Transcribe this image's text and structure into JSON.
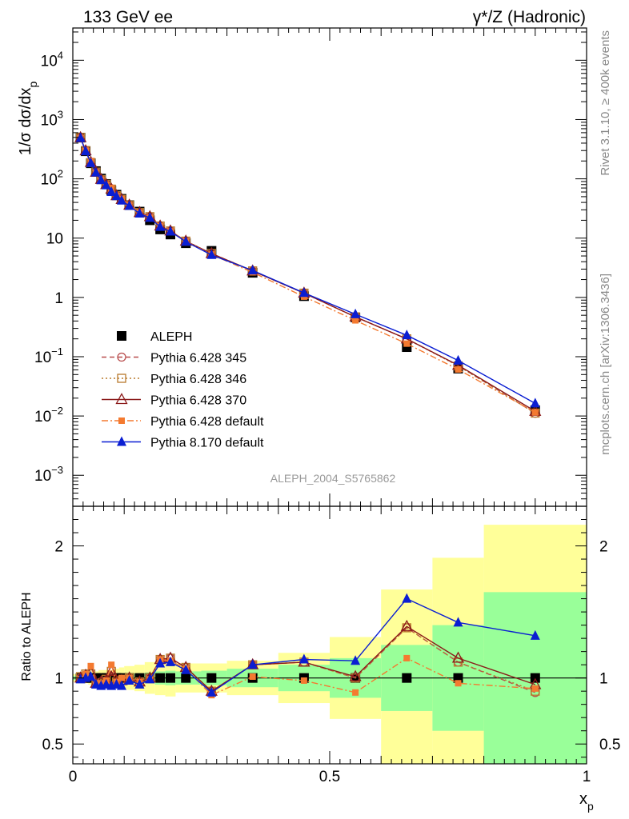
{
  "header": {
    "left": "133 GeV ee",
    "right": "γ*/Z (Hadronic)"
  },
  "side_text": {
    "rivet": "Rivet 3.1.10, ≥ 400k events",
    "mcplots": "mcplots.cern.ch [arXiv:1306.3436]"
  },
  "analysis_label": "ALEPH_2004_S5765862",
  "colors": {
    "aleph": "#000000",
    "p345": "#b84c4c",
    "p346": "#b87a2c",
    "p370": "#8b1a1a",
    "p6def": "#f47a30",
    "p8def": "#0a1ed2",
    "band_outer": "#ffff99",
    "band_inner": "#99ff99"
  },
  "chart_data": [
    {
      "type": "scatter",
      "panel": "main",
      "ylabel": "1/σ dσ/dx_p",
      "yscale": "log",
      "ylim": [
        0.0003,
        35000
      ],
      "xlim": [
        0,
        1
      ],
      "y_tick_labels": [
        "10^-3",
        "10^-2",
        "10^-1",
        "1",
        "10",
        "10^2",
        "10^3",
        "10^4"
      ],
      "legend_position": "center-left",
      "x": [
        0.015,
        0.025,
        0.035,
        0.045,
        0.055,
        0.065,
        0.075,
        0.085,
        0.095,
        0.11,
        0.13,
        0.15,
        0.17,
        0.19,
        0.22,
        0.27,
        0.35,
        0.45,
        0.55,
        0.65,
        0.75,
        0.9
      ],
      "series": [
        {
          "name": "ALEPH",
          "key": "aleph",
          "marker": "square",
          "line": "none",
          "values": [
            495,
            292,
            183,
            135,
            101,
            82,
            64,
            54,
            46,
            36,
            28,
            20,
            14,
            11.5,
            8.2,
            6.1,
            2.6,
            1.05,
            0.46,
            0.145,
            0.063,
            0.0125
          ]
        },
        {
          "name": "Pythia 6.428 345",
          "key": "p345",
          "marker": "circle-open",
          "line": "dashed",
          "values": [
            495,
            298,
            190,
            129,
            98,
            80,
            68,
            52,
            45,
            36,
            27,
            23,
            16,
            13.2,
            8.9,
            5.5,
            2.8,
            1.18,
            0.47,
            0.2,
            0.071,
            0.0111
          ]
        },
        {
          "name": "Pythia 6.428 346",
          "key": "p346",
          "marker": "square-open",
          "line": "dotted",
          "values": [
            500,
            300,
            188,
            130,
            97,
            81,
            67,
            52,
            45,
            36,
            27,
            23,
            16,
            13.2,
            8.9,
            5.5,
            2.8,
            1.18,
            0.47,
            0.2,
            0.07,
            0.0112
          ]
        },
        {
          "name": "Pythia 6.428 370",
          "key": "p370",
          "marker": "triangle-open",
          "line": "solid",
          "values": [
            495,
            298,
            190,
            129,
            98,
            80,
            67,
            52,
            45,
            36,
            27,
            23,
            16,
            13.2,
            8.9,
            5.5,
            2.8,
            1.18,
            0.47,
            0.2,
            0.072,
            0.012
          ]
        },
        {
          "name": "Pythia 6.428 default",
          "key": "p6def",
          "marker": "square-filled-small",
          "line": "dashdot",
          "values": [
            490,
            300,
            200,
            129,
            97,
            80,
            70,
            52,
            46,
            36,
            27,
            22,
            16,
            13,
            8.8,
            5.3,
            2.65,
            1.03,
            0.41,
            0.166,
            0.061,
            0.0115
          ]
        },
        {
          "name": "Pythia 8.170 default",
          "key": "p8def",
          "marker": "triangle-filled",
          "line": "solid",
          "values": [
            490,
            292,
            185,
            128,
            95,
            78,
            60,
            51,
            43,
            35,
            26,
            22,
            15.5,
            12.9,
            8.7,
            5.2,
            2.85,
            1.19,
            0.52,
            0.23,
            0.086,
            0.0163
          ]
        }
      ]
    },
    {
      "type": "line",
      "panel": "ratio",
      "ylabel": "Ratio to ALEPH",
      "xlabel": "x_p",
      "ylim": [
        0.35,
        2.3
      ],
      "xlim": [
        0,
        1
      ],
      "y_tick_labels": [
        "0.5",
        "1",
        "2"
      ],
      "x_tick_labels": [
        "0",
        "0.5",
        "1"
      ],
      "x": [
        0.015,
        0.025,
        0.035,
        0.045,
        0.055,
        0.065,
        0.075,
        0.085,
        0.095,
        0.11,
        0.13,
        0.15,
        0.17,
        0.19,
        0.22,
        0.27,
        0.35,
        0.45,
        0.55,
        0.65,
        0.75,
        0.9
      ],
      "series": [
        {
          "name": "Pythia 6.428 345",
          "key": "p345",
          "marker": "circle-open",
          "line": "dashed",
          "values": [
            1.0,
            1.02,
            1.04,
            0.96,
            0.97,
            0.98,
            1.06,
            0.97,
            0.98,
            1.0,
            0.97,
            1.0,
            1.14,
            1.15,
            1.08,
            0.9,
            1.1,
            1.12,
            1.0,
            1.38,
            1.12,
            0.89
          ]
        },
        {
          "name": "Pythia 6.428 346",
          "key": "p346",
          "marker": "square-open",
          "line": "dotted",
          "values": [
            1.01,
            1.03,
            1.03,
            0.96,
            0.96,
            0.99,
            1.05,
            0.97,
            0.98,
            1.0,
            0.97,
            1.0,
            1.14,
            1.15,
            1.08,
            0.9,
            1.1,
            1.12,
            1.0,
            1.38,
            1.12,
            0.9
          ]
        },
        {
          "name": "Pythia 6.428 370",
          "key": "p370",
          "marker": "triangle-open",
          "line": "solid",
          "values": [
            1.0,
            1.02,
            1.04,
            0.96,
            0.97,
            0.98,
            1.05,
            0.97,
            0.98,
            1.0,
            0.97,
            1.0,
            1.14,
            1.15,
            1.08,
            0.9,
            1.1,
            1.12,
            1.01,
            1.39,
            1.15,
            0.95
          ]
        },
        {
          "name": "Pythia 6.428 default",
          "key": "p6def",
          "marker": "square-filled-small",
          "line": "dashdot",
          "values": [
            0.99,
            1.03,
            1.09,
            0.96,
            0.96,
            0.98,
            1.1,
            0.97,
            1.0,
            1.0,
            0.97,
            0.99,
            1.14,
            1.13,
            1.07,
            0.87,
            1.01,
            0.98,
            0.89,
            1.15,
            0.96,
            0.92
          ]
        },
        {
          "name": "Pythia 8.170 default",
          "key": "p8def",
          "marker": "triangle-filled",
          "line": "solid",
          "values": [
            0.99,
            1.0,
            1.01,
            0.95,
            0.94,
            0.95,
            0.94,
            0.95,
            0.94,
            0.98,
            0.95,
            0.99,
            1.11,
            1.12,
            1.06,
            0.89,
            1.1,
            1.14,
            1.13,
            1.6,
            1.42,
            1.32
          ]
        }
      ],
      "bands": {
        "x_edges": [
          0.0,
          0.01,
          0.02,
          0.03,
          0.04,
          0.05,
          0.06,
          0.07,
          0.08,
          0.09,
          0.1,
          0.12,
          0.14,
          0.16,
          0.18,
          0.2,
          0.25,
          0.3,
          0.4,
          0.5,
          0.6,
          0.7,
          0.8,
          1.0
        ],
        "outer_lo": [
          0.97,
          0.96,
          0.96,
          0.95,
          0.95,
          0.94,
          0.94,
          0.94,
          0.93,
          0.92,
          0.91,
          0.9,
          0.88,
          0.87,
          0.86,
          0.89,
          0.89,
          0.87,
          0.81,
          0.69,
          0.35,
          0.35,
          0.35
        ],
        "outer_hi": [
          1.03,
          1.04,
          1.04,
          1.05,
          1.05,
          1.06,
          1.06,
          1.06,
          1.07,
          1.08,
          1.09,
          1.1,
          1.12,
          1.13,
          1.14,
          1.11,
          1.11,
          1.13,
          1.19,
          1.31,
          1.67,
          1.91,
          2.16
        ],
        "inner_lo": [
          0.985,
          0.985,
          0.985,
          0.985,
          0.98,
          0.98,
          0.98,
          0.98,
          0.98,
          0.975,
          0.97,
          0.965,
          0.96,
          0.95,
          0.945,
          0.95,
          0.945,
          0.93,
          0.9,
          0.85,
          0.75,
          0.6,
          0.35
        ],
        "inner_hi": [
          1.015,
          1.015,
          1.015,
          1.015,
          1.02,
          1.02,
          1.02,
          1.02,
          1.02,
          1.025,
          1.03,
          1.035,
          1.04,
          1.05,
          1.055,
          1.05,
          1.055,
          1.07,
          1.1,
          1.15,
          1.25,
          1.4,
          1.65
        ]
      }
    }
  ]
}
